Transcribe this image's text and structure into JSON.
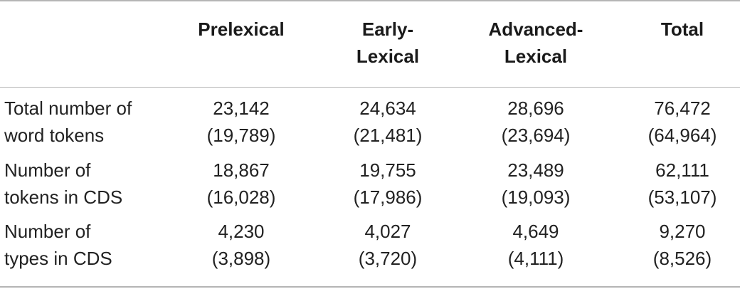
{
  "table": {
    "headers": [
      [
        "Prelexical"
      ],
      [
        "Early-",
        "Lexical"
      ],
      [
        "Advanced-",
        "Lexical"
      ],
      [
        "Total"
      ]
    ],
    "rows": [
      {
        "label": [
          "Total number of",
          "word tokens"
        ],
        "cells": [
          [
            "23,142",
            "(19,789)"
          ],
          [
            "24,634",
            "(21,481)"
          ],
          [
            "28,696",
            "(23,694)"
          ],
          [
            "76,472",
            "(64,964)"
          ]
        ]
      },
      {
        "label": [
          "Number of",
          "tokens in CDS"
        ],
        "cells": [
          [
            "18,867",
            "(16,028)"
          ],
          [
            "19,755",
            "(17,986)"
          ],
          [
            "23,489",
            "(19,093)"
          ],
          [
            "62,111",
            "(53,107)"
          ]
        ]
      },
      {
        "label": [
          "Number of",
          "types in CDS"
        ],
        "cells": [
          [
            "4,230",
            "(3,898)"
          ],
          [
            "4,027",
            "(3,720)"
          ],
          [
            "4,649",
            "(4,111)"
          ],
          [
            "9,270",
            "(8,526)"
          ]
        ]
      }
    ]
  }
}
